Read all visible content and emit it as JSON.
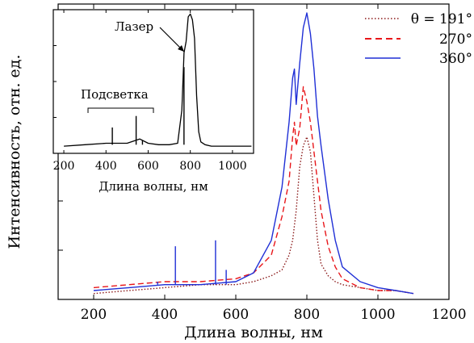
{
  "chart_data": [
    {
      "type": "line",
      "xlabel": "Длина волны, нм",
      "ylabel": "Интенсивность, отн. ед.",
      "xlim": [
        100,
        1200
      ],
      "ylim": [
        0,
        1.0
      ],
      "xticks": [
        "200",
        "400",
        "600",
        "800",
        "1000",
        "1200"
      ],
      "yticks_labeled": false,
      "legend": "top-right",
      "series": [
        {
          "name": "θ = 191°",
          "color": "#8b1a1a",
          "style": "dotted",
          "x": [
            200,
            300,
            400,
            500,
            600,
            650,
            700,
            730,
            750,
            760,
            770,
            780,
            790,
            800,
            810,
            820,
            830,
            840,
            860,
            880,
            900,
            950,
            1000,
            1050,
            1100
          ],
          "y": [
            0.02,
            0.03,
            0.04,
            0.05,
            0.05,
            0.06,
            0.08,
            0.1,
            0.15,
            0.2,
            0.3,
            0.45,
            0.52,
            0.55,
            0.5,
            0.35,
            0.2,
            0.12,
            0.08,
            0.06,
            0.05,
            0.04,
            0.03,
            0.03,
            0.02
          ]
        },
        {
          "name": "270°",
          "color": "#e8161a",
          "style": "dashed",
          "x": [
            200,
            300,
            400,
            500,
            600,
            650,
            700,
            730,
            750,
            760,
            765,
            770,
            780,
            790,
            800,
            810,
            820,
            830,
            840,
            860,
            880,
            900,
            950,
            1000,
            1050,
            1100
          ],
          "y": [
            0.04,
            0.05,
            0.06,
            0.06,
            0.07,
            0.09,
            0.15,
            0.28,
            0.4,
            0.55,
            0.6,
            0.52,
            0.58,
            0.72,
            0.67,
            0.6,
            0.5,
            0.4,
            0.3,
            0.18,
            0.11,
            0.07,
            0.04,
            0.03,
            0.03,
            0.02
          ]
        },
        {
          "name": "360°",
          "color": "#1f2fd6",
          "style": "solid",
          "x": [
            200,
            300,
            400,
            500,
            600,
            650,
            700,
            730,
            750,
            760,
            765,
            770,
            780,
            790,
            800,
            810,
            820,
            830,
            840,
            860,
            880,
            900,
            950,
            1000,
            1050,
            1100
          ],
          "y": [
            0.03,
            0.04,
            0.05,
            0.05,
            0.06,
            0.09,
            0.2,
            0.38,
            0.6,
            0.75,
            0.78,
            0.66,
            0.8,
            0.92,
            0.97,
            0.9,
            0.78,
            0.62,
            0.52,
            0.34,
            0.2,
            0.11,
            0.06,
            0.04,
            0.03,
            0.02
          ]
        }
      ],
      "spikes": [
        {
          "x": 380,
          "y": 0.06
        },
        {
          "x": 430,
          "y": 0.18
        },
        {
          "x": 543,
          "y": 0.2
        },
        {
          "x": 573,
          "y": 0.1
        }
      ]
    },
    {
      "type": "line",
      "inset": true,
      "xlabel": "Длина волны, нм",
      "xlim": [
        150,
        1100
      ],
      "ylim": [
        0,
        1.0
      ],
      "xticks": [
        "200",
        "400",
        "600",
        "800",
        "1000"
      ],
      "annotations": [
        "Лазер",
        "Подсветка"
      ],
      "series": [
        {
          "color": "#000000",
          "style": "solid",
          "x": [
            200,
            300,
            400,
            500,
            560,
            600,
            650,
            700,
            740,
            760,
            770,
            780,
            790,
            800,
            810,
            820,
            830,
            840,
            850,
            870,
            900,
            1000,
            1090
          ],
          "y": [
            0.05,
            0.06,
            0.07,
            0.07,
            0.1,
            0.07,
            0.06,
            0.06,
            0.07,
            0.3,
            0.7,
            0.78,
            0.95,
            0.97,
            0.93,
            0.8,
            0.4,
            0.15,
            0.08,
            0.06,
            0.05,
            0.05,
            0.05
          ]
        }
      ],
      "spikes": [
        {
          "x": 430,
          "y": 0.18
        },
        {
          "x": 543,
          "y": 0.26
        },
        {
          "x": 573,
          "y": 0.09
        },
        {
          "x": 770,
          "y": 0.6
        }
      ]
    }
  ]
}
